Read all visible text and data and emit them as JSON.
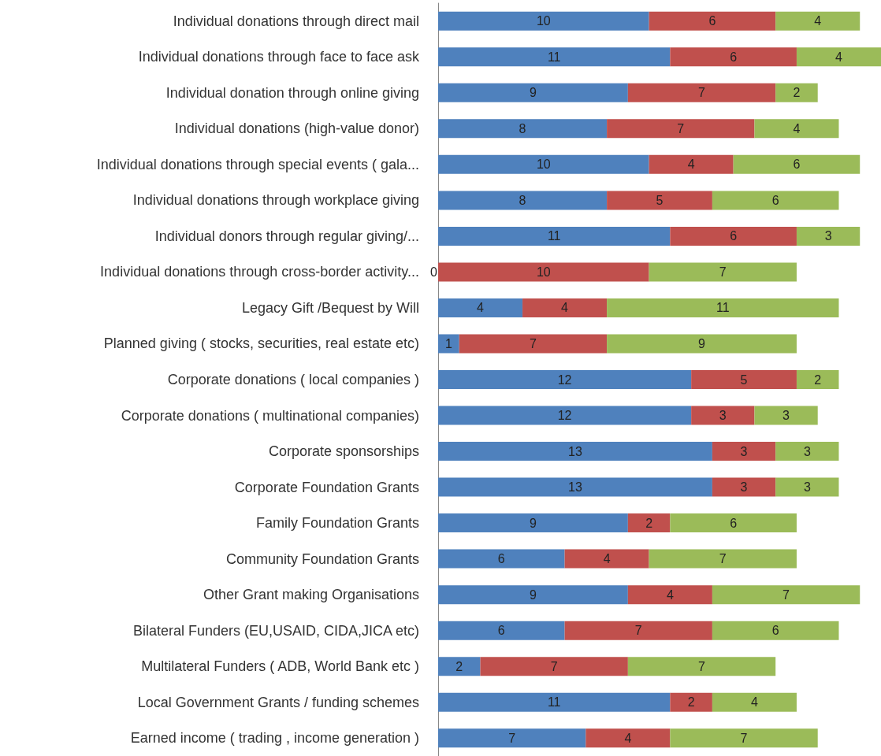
{
  "chart_data": {
    "type": "bar",
    "orientation": "horizontal",
    "stacked": true,
    "data_labels": true,
    "categories": [
      "Individual donations through direct mail",
      "Individual donations through face to face ask",
      "Individual donation through online giving",
      "Individual donations (high-value donor)",
      "Individual donations through special events ( gala...",
      "Individual donations through workplace giving",
      "Individual donors through regular giving/...",
      "Individual donations through cross-border activity...",
      "Legacy Gift /Bequest by Will",
      "Planned giving ( stocks, securities, real estate etc)",
      "Corporate donations ( local companies )",
      "Corporate donations ( multinational companies)",
      "Corporate sponsorships",
      "Corporate Foundation Grants",
      "Family Foundation Grants",
      "Community Foundation Grants",
      "Other Grant making Organisations",
      "Bilateral Funders (EU,USAID, CIDA,JICA etc)",
      "Multilateral Funders ( ADB, World Bank etc )",
      "Local Government Grants / funding schemes",
      "Earned income ( trading , income generation )"
    ],
    "series": [
      {
        "color": "#4f81bd",
        "values": [
          10,
          11,
          9,
          8,
          10,
          8,
          11,
          0,
          4,
          1,
          12,
          12,
          13,
          13,
          9,
          6,
          9,
          6,
          2,
          11,
          7
        ]
      },
      {
        "color": "#c0504d",
        "values": [
          6,
          6,
          7,
          7,
          4,
          5,
          6,
          10,
          4,
          7,
          5,
          3,
          3,
          3,
          2,
          4,
          4,
          7,
          7,
          2,
          4
        ]
      },
      {
        "color": "#9bbb59",
        "values": [
          4,
          4,
          2,
          4,
          6,
          6,
          3,
          7,
          11,
          9,
          2,
          3,
          3,
          3,
          6,
          7,
          7,
          6,
          7,
          4,
          7
        ]
      }
    ]
  }
}
